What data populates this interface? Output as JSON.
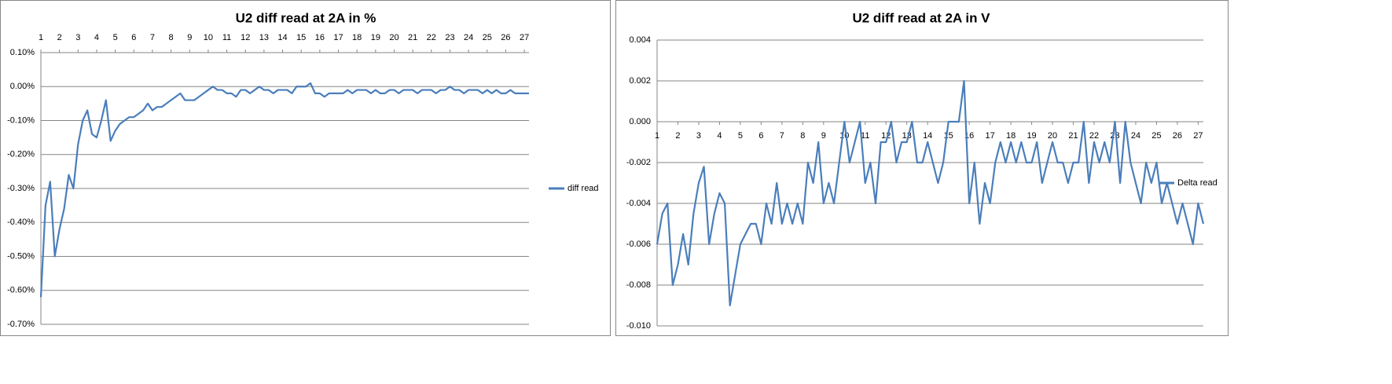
{
  "chart_data": [
    {
      "type": "line",
      "title": "U2 diff read at 2A in %",
      "x_axis_position": "top",
      "legend_position": "right",
      "grid": true,
      "x": [
        1,
        1.25,
        1.5,
        1.75,
        2,
        2.25,
        2.5,
        2.75,
        3,
        3.25,
        3.5,
        3.75,
        4,
        4.25,
        4.5,
        4.75,
        5,
        5.25,
        5.5,
        5.75,
        6,
        6.25,
        6.5,
        6.75,
        7,
        7.25,
        7.5,
        7.75,
        8,
        8.25,
        8.5,
        8.75,
        9,
        9.25,
        9.5,
        9.75,
        10,
        10.25,
        10.5,
        10.75,
        11,
        11.25,
        11.5,
        11.75,
        12,
        12.25,
        12.5,
        12.75,
        13,
        13.25,
        13.5,
        13.75,
        14,
        14.25,
        14.5,
        14.75,
        15,
        15.25,
        15.5,
        15.75,
        16,
        16.25,
        16.5,
        16.75,
        17,
        17.25,
        17.5,
        17.75,
        18,
        18.25,
        18.5,
        18.75,
        19,
        19.25,
        19.5,
        19.75,
        20,
        20.25,
        20.5,
        20.75,
        21,
        21.25,
        21.5,
        21.75,
        22,
        22.25,
        22.5,
        22.75,
        23,
        23.25,
        23.5,
        23.75,
        24,
        24.25,
        24.5,
        24.75,
        25,
        25.25,
        25.5,
        25.75,
        26,
        26.25,
        26.5,
        26.75,
        27,
        27.25
      ],
      "series": [
        {
          "name": "diff read",
          "color": "#4a7ebb",
          "values": [
            -0.62,
            -0.35,
            -0.28,
            -0.5,
            -0.42,
            -0.36,
            -0.26,
            -0.3,
            -0.17,
            -0.1,
            -0.07,
            -0.14,
            -0.15,
            -0.1,
            -0.04,
            -0.16,
            -0.13,
            -0.11,
            -0.1,
            -0.09,
            -0.09,
            -0.08,
            -0.07,
            -0.05,
            -0.07,
            -0.06,
            -0.06,
            -0.05,
            -0.04,
            -0.03,
            -0.02,
            -0.04,
            -0.04,
            -0.04,
            -0.03,
            -0.02,
            -0.01,
            0,
            -0.01,
            -0.01,
            -0.02,
            -0.02,
            -0.03,
            -0.01,
            -0.01,
            -0.02,
            -0.01,
            0,
            -0.01,
            -0.01,
            -0.02,
            -0.01,
            -0.01,
            -0.01,
            -0.02,
            0,
            0,
            0,
            0.01,
            -0.02,
            -0.02,
            -0.03,
            -0.02,
            -0.02,
            -0.02,
            -0.02,
            -0.01,
            -0.02,
            -0.01,
            -0.01,
            -0.01,
            -0.02,
            -0.01,
            -0.02,
            -0.02,
            -0.01,
            -0.01,
            -0.02,
            -0.01,
            -0.01,
            -0.01,
            -0.02,
            -0.01,
            -0.01,
            -0.01,
            -0.02,
            -0.01,
            -0.01,
            0,
            -0.01,
            -0.01,
            -0.02,
            -0.01,
            -0.01,
            -0.01,
            -0.02,
            -0.01,
            -0.02,
            -0.01,
            -0.02,
            -0.02,
            -0.01,
            -0.02,
            -0.02,
            -0.02,
            -0.02
          ]
        }
      ],
      "xlim": [
        1,
        27.25
      ],
      "xticks": [
        1,
        2,
        3,
        4,
        5,
        6,
        7,
        8,
        9,
        10,
        11,
        12,
        13,
        14,
        15,
        16,
        17,
        18,
        19,
        20,
        21,
        22,
        23,
        24,
        25,
        26,
        27
      ],
      "ylim": [
        -0.7,
        0.1
      ],
      "yticks": [
        {
          "value": 0.1,
          "label": "0.10%"
        },
        {
          "value": 0,
          "label": "0.00%"
        },
        {
          "value": -0.1,
          "label": "-0.10%"
        },
        {
          "value": -0.2,
          "label": "-0.20%"
        },
        {
          "value": -0.3,
          "label": "-0.30%"
        },
        {
          "value": -0.4,
          "label": "-0.40%"
        },
        {
          "value": -0.5,
          "label": "-0.50%"
        },
        {
          "value": -0.6,
          "label": "-0.60%"
        },
        {
          "value": -0.7,
          "label": "-0.70%"
        }
      ]
    },
    {
      "type": "line",
      "title": "U2 diff read at 2A in V",
      "x_axis_position": "zero",
      "legend_position": "right",
      "grid": true,
      "x": [
        1,
        1.25,
        1.5,
        1.75,
        2,
        2.25,
        2.5,
        2.75,
        3,
        3.25,
        3.5,
        3.75,
        4,
        4.25,
        4.5,
        4.75,
        5,
        5.25,
        5.5,
        5.75,
        6,
        6.25,
        6.5,
        6.75,
        7,
        7.25,
        7.5,
        7.75,
        8,
        8.25,
        8.5,
        8.75,
        9,
        9.25,
        9.5,
        9.75,
        10,
        10.25,
        10.5,
        10.75,
        11,
        11.25,
        11.5,
        11.75,
        12,
        12.25,
        12.5,
        12.75,
        13,
        13.25,
        13.5,
        13.75,
        14,
        14.25,
        14.5,
        14.75,
        15,
        15.25,
        15.5,
        15.75,
        16,
        16.25,
        16.5,
        16.75,
        17,
        17.25,
        17.5,
        17.75,
        18,
        18.25,
        18.5,
        18.75,
        19,
        19.25,
        19.5,
        19.75,
        20,
        20.25,
        20.5,
        20.75,
        21,
        21.25,
        21.5,
        21.75,
        22,
        22.25,
        22.5,
        22.75,
        23,
        23.25,
        23.5,
        23.75,
        24,
        24.25,
        24.5,
        24.75,
        25,
        25.25,
        25.5,
        25.75,
        26,
        26.25,
        26.5,
        26.75,
        27,
        27.25
      ],
      "series": [
        {
          "name": "Delta read",
          "color": "#4a7ebb",
          "values": [
            -0.006,
            -0.0045,
            -0.004,
            -0.008,
            -0.007,
            -0.0055,
            -0.007,
            -0.0045,
            -0.003,
            -0.0022,
            -0.006,
            -0.0045,
            -0.0035,
            -0.004,
            -0.009,
            -0.0075,
            -0.006,
            -0.0055,
            -0.005,
            -0.005,
            -0.006,
            -0.004,
            -0.005,
            -0.003,
            -0.005,
            -0.004,
            -0.005,
            -0.004,
            -0.005,
            -0.002,
            -0.003,
            -0.001,
            -0.004,
            -0.003,
            -0.004,
            -0.002,
            0,
            -0.002,
            -0.001,
            0,
            -0.003,
            -0.002,
            -0.004,
            -0.001,
            -0.001,
            0,
            -0.002,
            -0.001,
            -0.001,
            0,
            -0.002,
            -0.002,
            -0.001,
            -0.002,
            -0.003,
            -0.002,
            0,
            0,
            0,
            0.002,
            -0.004,
            -0.002,
            -0.005,
            -0.003,
            -0.004,
            -0.002,
            -0.001,
            -0.002,
            -0.001,
            -0.002,
            -0.001,
            -0.002,
            -0.002,
            -0.001,
            -0.003,
            -0.002,
            -0.001,
            -0.002,
            -0.002,
            -0.003,
            -0.002,
            -0.002,
            0,
            -0.003,
            -0.001,
            -0.002,
            -0.001,
            -0.002,
            0,
            -0.003,
            0,
            -0.002,
            -0.003,
            -0.004,
            -0.002,
            -0.003,
            -0.002,
            -0.004,
            -0.003,
            -0.004,
            -0.005,
            -0.004,
            -0.005,
            -0.006,
            -0.004,
            -0.005
          ]
        }
      ],
      "xlim": [
        1,
        27.25
      ],
      "xticks": [
        1,
        2,
        3,
        4,
        5,
        6,
        7,
        8,
        9,
        10,
        11,
        12,
        13,
        14,
        15,
        16,
        17,
        18,
        19,
        20,
        21,
        22,
        23,
        24,
        25,
        26,
        27
      ],
      "ylim": [
        -0.01,
        0.004
      ],
      "yticks": [
        0.004,
        0.002,
        {
          "value": 0,
          "label": "0.000"
        },
        -0.002,
        -0.004,
        -0.006,
        -0.008,
        {
          "value": -0.01,
          "label": "-0.010"
        }
      ]
    }
  ]
}
